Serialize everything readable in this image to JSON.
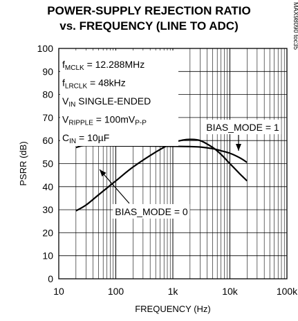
{
  "chart_data": {
    "type": "line",
    "title_line1": "POWER-SUPPLY REJECTION RATIO",
    "title_line2": "vs. FREQUENCY (LINE TO ADC)",
    "xlabel": "FREQUENCY (Hz)",
    "ylabel": "PSRR (dB)",
    "x_scale": "log",
    "xlim": [
      10,
      100000
    ],
    "ylim": [
      0,
      100
    ],
    "x_ticks": [
      10,
      100,
      1000,
      10000,
      100000
    ],
    "x_tick_labels": [
      "10",
      "100",
      "1k",
      "10k",
      "100k"
    ],
    "y_ticks": [
      0,
      10,
      20,
      30,
      40,
      50,
      60,
      70,
      80,
      90,
      100
    ],
    "y_tick_labels": [
      "0",
      "10",
      "20",
      "30",
      "40",
      "50",
      "60",
      "70",
      "80",
      "90",
      "100"
    ],
    "grid": true,
    "watermark": "MAX98090 toc35",
    "conditions": [
      {
        "main": "f",
        "sub": "MCLK",
        "rest": " = 12.288MHz"
      },
      {
        "main": "f",
        "sub": "LRCLK",
        "rest": " = 48kHz"
      },
      {
        "main": "V",
        "sub": "IN",
        "rest": " SINGLE-ENDED"
      },
      {
        "main": "V",
        "sub": "RIPPLE",
        "rest": " = 100mV",
        "sub2": "P-P"
      },
      {
        "main": "C",
        "sub": "IN",
        "rest": " = 10µF"
      }
    ],
    "series": [
      {
        "name": "BIAS_MODE = 1",
        "x": [
          20,
          25,
          30,
          50,
          100,
          200,
          500,
          1000,
          2000,
          3000,
          5000,
          7000,
          10000,
          15000,
          20000
        ],
        "y": [
          57,
          57.7,
          57.8,
          57.8,
          57.7,
          57.7,
          57.6,
          57.5,
          57.4,
          57.2,
          56.5,
          55.6,
          54.5,
          52.5,
          50.5
        ]
      },
      {
        "name": "BIAS_MODE = 0",
        "x": [
          20,
          30,
          50,
          100,
          200,
          500,
          1000,
          1500,
          2000,
          3000,
          5000,
          7000,
          10000,
          15000,
          20000
        ],
        "y": [
          29.5,
          32,
          36.5,
          42.5,
          48.5,
          55,
          59,
          60.2,
          60.5,
          60,
          57,
          54,
          50,
          45.5,
          42.5
        ]
      }
    ],
    "annotations": [
      {
        "text": "BIAS_MODE = 1",
        "target_series": 0
      },
      {
        "text": "BIAS_MODE = 0",
        "target_series": 1
      }
    ]
  }
}
